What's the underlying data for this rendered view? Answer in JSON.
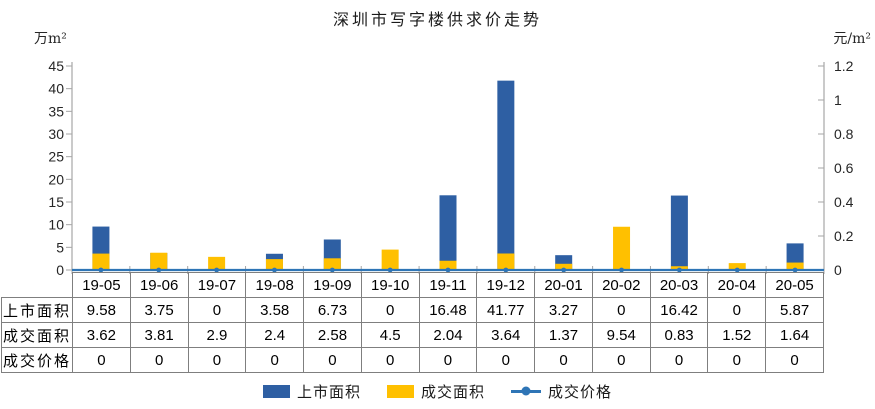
{
  "chart_data": {
    "type": "bar",
    "bar_layout": "overlapped",
    "grid": false,
    "title": "深圳市写字楼供求价走势",
    "categories": [
      "19-05",
      "19-06",
      "19-07",
      "19-08",
      "19-09",
      "19-10",
      "19-11",
      "19-12",
      "20-01",
      "20-02",
      "20-03",
      "20-04",
      "20-05"
    ],
    "series": [
      {
        "name": "上市面积",
        "kind": "bar",
        "axis": "left",
        "color": "#2E5FA3",
        "values": [
          9.58,
          3.75,
          0,
          3.58,
          6.73,
          0,
          16.48,
          41.77,
          3.27,
          0,
          16.42,
          0,
          5.87
        ]
      },
      {
        "name": "成交面积",
        "kind": "bar",
        "axis": "left",
        "color": "#FFC000",
        "values": [
          3.62,
          3.81,
          2.9,
          2.4,
          2.58,
          4.5,
          2.04,
          3.64,
          1.37,
          9.54,
          0.83,
          1.52,
          1.64
        ]
      },
      {
        "name": "成交价格",
        "kind": "line",
        "axis": "right",
        "color": "#2E75B6",
        "values": [
          0,
          0,
          0,
          0,
          0,
          0,
          0,
          0,
          0,
          0,
          0,
          0,
          0
        ]
      }
    ],
    "left_axis": {
      "unit": "万m²",
      "min": 0,
      "max": 45,
      "step": 5,
      "tick_labels": [
        "45",
        "40",
        "35",
        "30",
        "25",
        "20",
        "15",
        "10",
        "5",
        "0"
      ]
    },
    "right_axis": {
      "unit": "元/m²",
      "min": 0,
      "max": 1.2,
      "step": 0.2,
      "tick_labels": [
        "1.2",
        "1",
        "0.8",
        "0.6",
        "0.4",
        "0.2",
        "0"
      ]
    },
    "legend": {
      "position": "bottom",
      "items": [
        "上市面积",
        "成交面积",
        "成交价格"
      ]
    },
    "data_table_shown": true,
    "axis_color": "#A6A6A6",
    "tick_label_color": "#262626"
  }
}
